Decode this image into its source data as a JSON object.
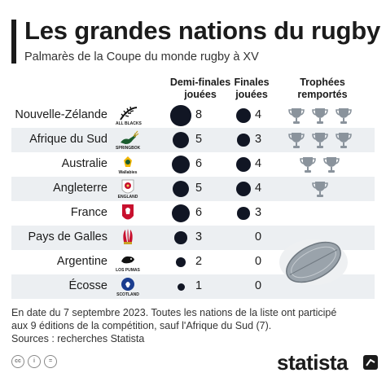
{
  "header": {
    "title": "Les grandes nations du rugby",
    "subtitle": "Palmarès de la Coupe du monde rugby à XV"
  },
  "columns": {
    "semi_line1": "Demi-finales",
    "semi_line2": "jouées",
    "finals_line1": "Finales",
    "finals_line2": "jouées",
    "trophies_line1": "Trophées",
    "trophies_line2": "remportés"
  },
  "rows": [
    {
      "country": "Nouvelle-Zélande",
      "logo": "all-blacks-fern-icon",
      "logo_text": "ALL BLACKS",
      "semi": 8,
      "finals": 4,
      "trophies": 3
    },
    {
      "country": "Afrique du Sud",
      "logo": "springbok-icon",
      "logo_text": "SPRINGBOK",
      "semi": 5,
      "finals": 3,
      "trophies": 3
    },
    {
      "country": "Australie",
      "logo": "wallabies-icon",
      "logo_text": "Wallabies",
      "semi": 6,
      "finals": 4,
      "trophies": 2
    },
    {
      "country": "Angleterre",
      "logo": "england-rose-icon",
      "logo_text": "ENGLAND",
      "semi": 5,
      "finals": 4,
      "trophies": 1
    },
    {
      "country": "France",
      "logo": "france-rooster-icon",
      "logo_text": "",
      "semi": 6,
      "finals": 3,
      "trophies": 0
    },
    {
      "country": "Pays de Galles",
      "logo": "wales-feathers-icon",
      "logo_text": "",
      "semi": 3,
      "finals": 0,
      "trophies": 0
    },
    {
      "country": "Argentine",
      "logo": "los-pumas-icon",
      "logo_text": "LOS PUMAS",
      "semi": 2,
      "finals": 0,
      "trophies": 0
    },
    {
      "country": "Écosse",
      "logo": "scotland-thistle-icon",
      "logo_text": "SCOTLAND",
      "semi": 1,
      "finals": 0,
      "trophies": 0
    }
  ],
  "chart_data": {
    "type": "table",
    "title": "Les grandes nations du rugby",
    "subtitle": "Palmarès de la Coupe du monde rugby à XV",
    "categories": [
      "Nouvelle-Zélande",
      "Afrique du Sud",
      "Australie",
      "Angleterre",
      "France",
      "Pays de Galles",
      "Argentine",
      "Écosse"
    ],
    "series": [
      {
        "name": "Demi-finales jouées",
        "values": [
          8,
          5,
          6,
          5,
          6,
          3,
          2,
          1
        ]
      },
      {
        "name": "Finales jouées",
        "values": [
          4,
          3,
          4,
          4,
          3,
          0,
          0,
          0
        ]
      },
      {
        "name": "Trophées remportés",
        "values": [
          3,
          3,
          2,
          1,
          0,
          0,
          0,
          0
        ]
      }
    ]
  },
  "footer": {
    "note_line1": "En date du 7 septembre 2023. Toutes les nations de la liste ont participé",
    "note_line2": "aux 9 éditions de la compétition, sauf l'Afrique du Sud (7).",
    "source": "Sources : recherches Statista",
    "brand": "statista",
    "license_icons": [
      "cc",
      "i",
      "="
    ]
  },
  "colors": {
    "dot": "#111624",
    "row_shade": "#eceff2",
    "trophy": "#8a939c",
    "text": "#1b1b1b"
  }
}
